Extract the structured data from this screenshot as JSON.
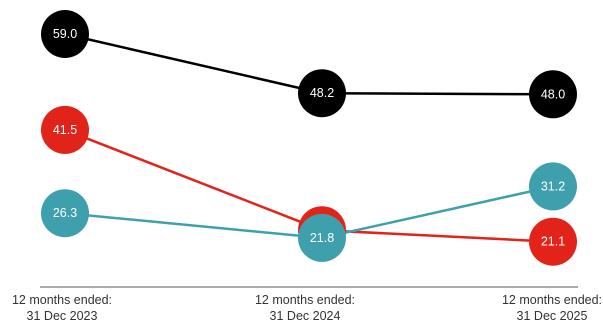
{
  "chart_data": {
    "type": "line",
    "categories": [
      "12 months ended:\n31 Dec 2023",
      "12 months ended:\n31 Dec 2024",
      "12 months ended:\n31 Dec 2025"
    ],
    "series": [
      {
        "color": "#000000",
        "values": [
          59.0,
          48.2,
          48.0
        ],
        "labels": [
          "59.0",
          "48.2",
          "48.0"
        ]
      },
      {
        "color": "#e2231a",
        "values": [
          41.5,
          23.2,
          21.1
        ],
        "labels": [
          "41.5",
          "23.2",
          "21.1"
        ]
      },
      {
        "color": "#3fa0ad",
        "values": [
          26.3,
          21.8,
          31.2
        ],
        "labels": [
          "26.3",
          "21.8",
          "31.2"
        ]
      }
    ],
    "title": "",
    "xlabel": "",
    "ylabel": "",
    "ylim": [
      0,
      60
    ],
    "grid": false,
    "legend": "none",
    "axis_line_color": "#555555"
  }
}
